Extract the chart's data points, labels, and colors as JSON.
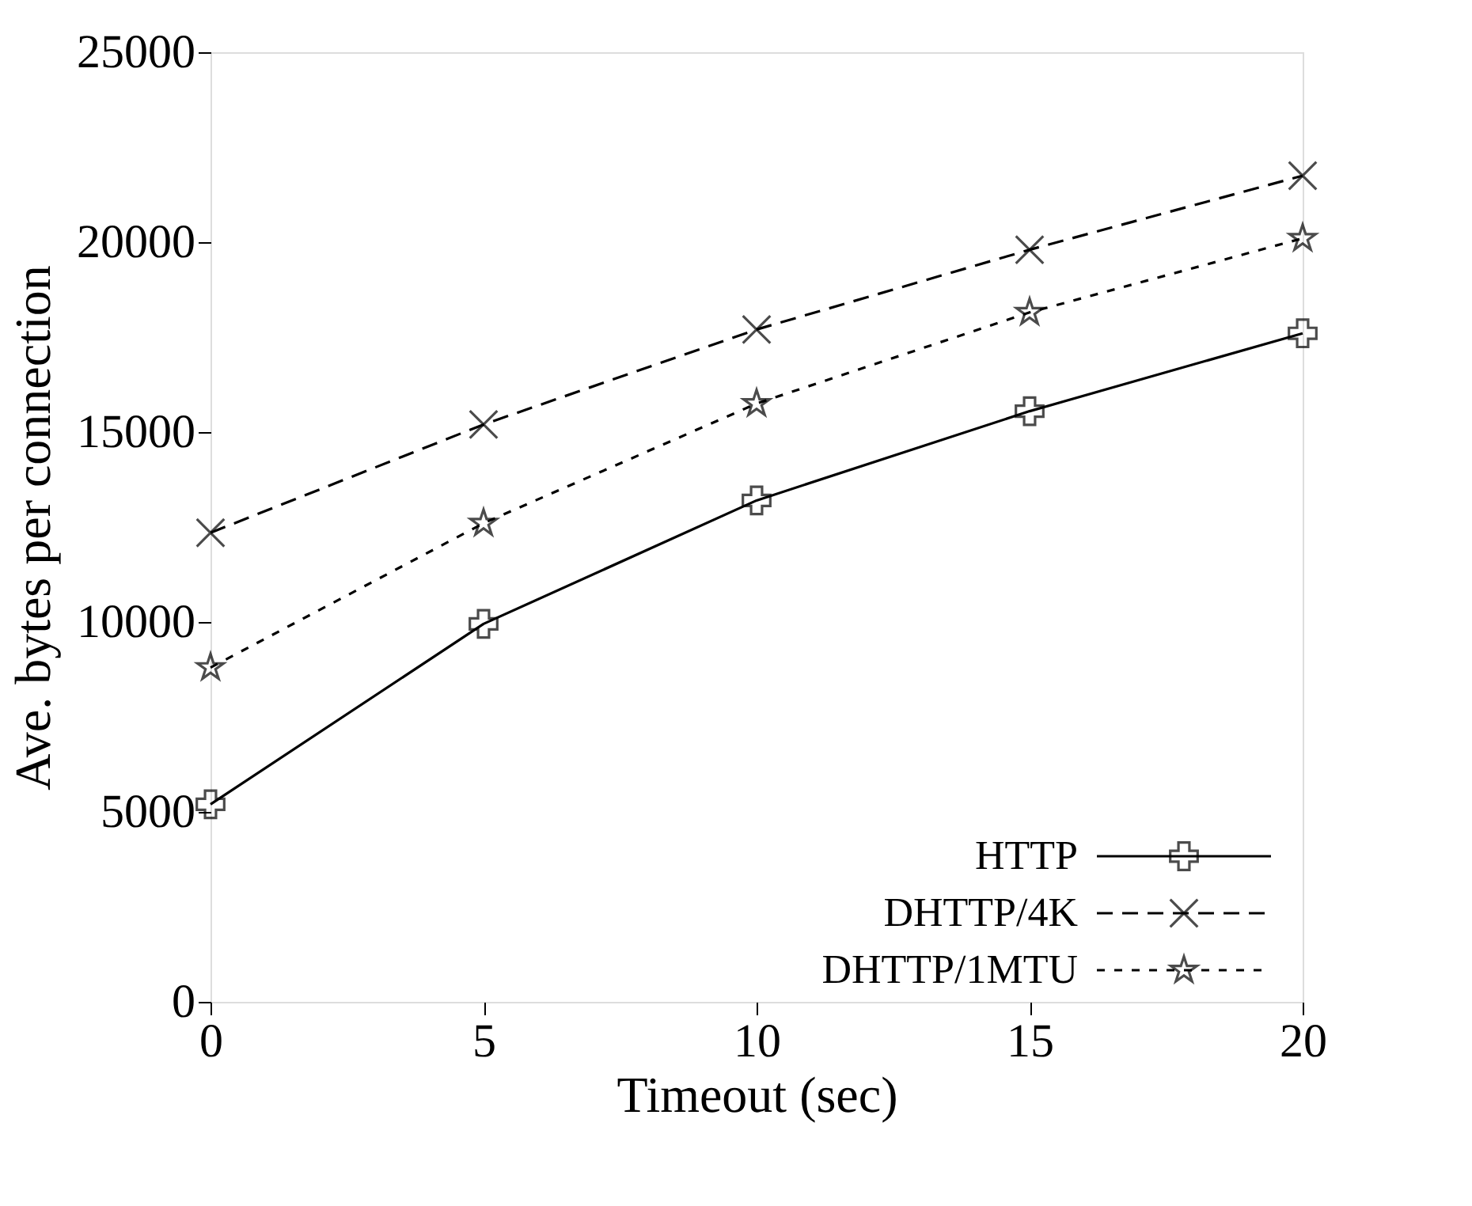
{
  "chart_data": {
    "type": "line",
    "xlabel": "Timeout (sec)",
    "ylabel": "Ave. bytes per connection",
    "x": [
      0,
      5,
      10,
      15,
      20
    ],
    "series": [
      {
        "name": "HTTP",
        "color": "#000000",
        "values": [
          5200,
          9950,
          13200,
          15550,
          17600
        ],
        "marker": "cross",
        "line_style": "solid"
      },
      {
        "name": "DHTTP/4K",
        "color": "#000000",
        "values": [
          12350,
          15200,
          17700,
          19800,
          21750
        ],
        "marker": "x",
        "line_style": "dashed"
      },
      {
        "name": "DHTTP/1MTU",
        "color": "#000000",
        "values": [
          8800,
          12600,
          15750,
          18150,
          20100
        ],
        "marker": "star",
        "line_style": "dotted"
      }
    ],
    "xlim": [
      0,
      20
    ],
    "xticks": [
      0,
      5,
      10,
      15,
      20
    ],
    "ylim": [
      0,
      25000
    ],
    "yticks": [
      0,
      5000,
      10000,
      15000,
      20000,
      25000
    ],
    "grid": false,
    "legend": "bottom right"
  }
}
